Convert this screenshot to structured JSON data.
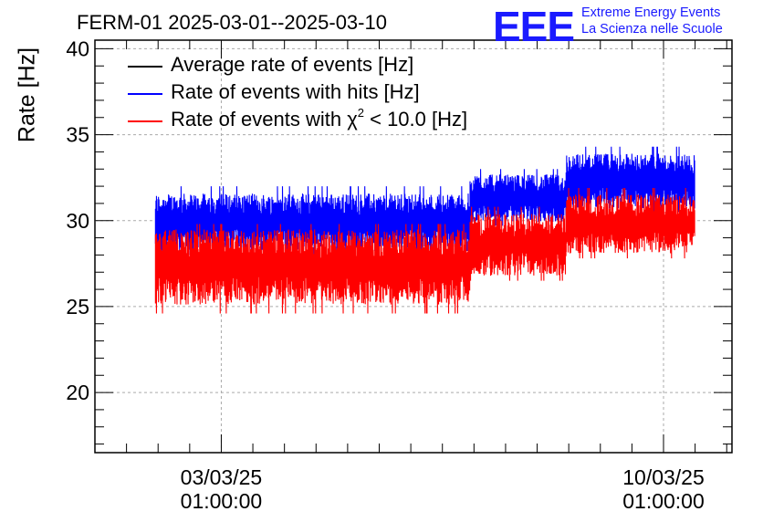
{
  "header": {
    "title": "FERM-01 2025-03-01--2025-03-10"
  },
  "logo": {
    "mark": "EEE",
    "line1": "Extreme Energy Events",
    "line2": "La Scienza nelle Scuole",
    "color": "#1a1aff"
  },
  "chart_data": {
    "type": "line",
    "ylabel": "Rate [Hz]",
    "xlabel": "",
    "ylim": [
      16.5,
      40.5
    ],
    "y_ticks": [
      20,
      25,
      30,
      35,
      40
    ],
    "x_range": [
      "2025-03-01T01:00:00",
      "2025-03-11T03:00:00"
    ],
    "x_ticks": [
      {
        "time": "2025-03-03T01:00:00",
        "line1": "03/03/25",
        "line2": "01:00:00"
      },
      {
        "time": "2025-03-10T01:00:00",
        "line1": "10/03/25",
        "line2": "01:00:00"
      }
    ],
    "grid": true,
    "legend_position": "top-left",
    "series": [
      {
        "name": "Average rate of events [Hz]",
        "color": "#000000",
        "segments": []
      },
      {
        "name": "Rate of events with hits [Hz]",
        "color": "#0000ff",
        "segments": [
          {
            "start": "2025-03-02T00:00:00",
            "end": "2025-03-06T23:30:00",
            "min": 28.0,
            "max": 32.0,
            "mean": 29.9
          },
          {
            "start": "2025-03-06T23:30:00",
            "end": "2025-03-08T12:00:00",
            "min": 29.7,
            "max": 33.0,
            "mean": 31.3
          },
          {
            "start": "2025-03-08T12:00:00",
            "end": "2025-03-10T13:00:00",
            "min": 30.5,
            "max": 34.3,
            "mean": 32.3
          }
        ]
      },
      {
        "name": "Rate of events with χ2 < 10.0 [Hz]",
        "name_parts": {
          "pre": "Rate of events with χ",
          "sup": "2",
          "post": " < 10.0 [Hz]"
        },
        "color": "#ff0000",
        "segments": [
          {
            "start": "2025-03-02T00:00:00",
            "end": "2025-03-06T23:30:00",
            "min": 24.6,
            "max": 29.8,
            "mean": 27.3
          },
          {
            "start": "2025-03-06T23:30:00",
            "end": "2025-03-08T12:00:00",
            "min": 26.5,
            "max": 30.8,
            "mean": 28.6
          },
          {
            "start": "2025-03-08T12:00:00",
            "end": "2025-03-10T13:00:00",
            "min": 27.8,
            "max": 31.9,
            "mean": 29.8
          }
        ]
      }
    ]
  }
}
